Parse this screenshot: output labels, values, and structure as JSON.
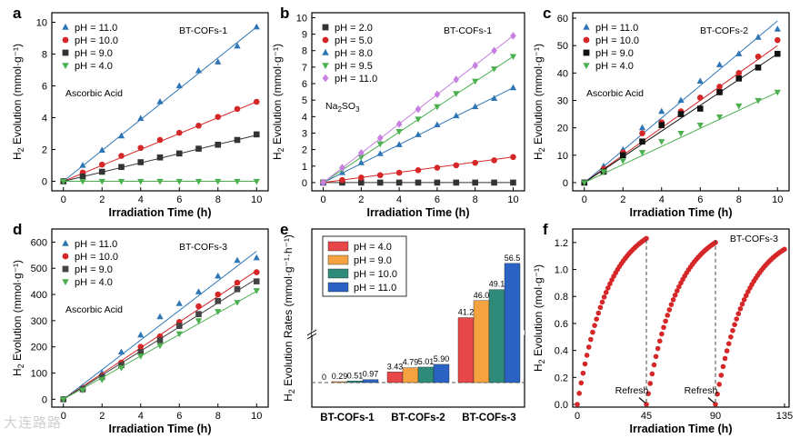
{
  "watermark": "大连路路",
  "chart_data": [
    {
      "id": "a",
      "panel_label": "a",
      "type": "scatter",
      "sample": "BT-COFs-1",
      "note": "Ascorbic Acid",
      "xlabel": "Irradiation Time (h)",
      "ylabel": "H2 Evolution (mmol·g⁻¹)",
      "xlim": [
        -0.6,
        10.6
      ],
      "ylim": [
        -0.6,
        10.6
      ],
      "xticks": [
        0,
        2,
        4,
        6,
        8,
        10
      ],
      "yticks": [
        0,
        2,
        4,
        6,
        8,
        10
      ],
      "legend": "top-left",
      "series": [
        {
          "name": "pH = 11.0",
          "color": "#2e75b6",
          "marker": "triangle-up",
          "x": [
            0,
            1,
            2,
            3,
            4,
            5,
            6,
            7,
            8,
            9,
            10
          ],
          "y": [
            0,
            1.0,
            1.95,
            2.85,
            3.95,
            5.0,
            6.0,
            6.95,
            7.5,
            8.5,
            9.7
          ],
          "fit": [
            0,
            0.97
          ]
        },
        {
          "name": "pH = 10.0",
          "color": "#d62728",
          "marker": "circle",
          "x": [
            0,
            1,
            2,
            3,
            4,
            5,
            6,
            7,
            8,
            9,
            10
          ],
          "y": [
            0,
            0.55,
            1.05,
            1.6,
            2.1,
            2.6,
            3.05,
            3.5,
            4.05,
            4.55,
            5.0
          ],
          "fit": [
            0,
            0.5
          ]
        },
        {
          "name": "pH = 9.0",
          "color": "#333333",
          "marker": "square",
          "x": [
            0,
            1,
            2,
            3,
            4,
            5,
            6,
            7,
            8,
            9,
            10
          ],
          "y": [
            0,
            0.3,
            0.6,
            0.9,
            1.2,
            1.5,
            1.75,
            2.05,
            2.3,
            2.6,
            2.95
          ],
          "fit": [
            0,
            0.29
          ]
        },
        {
          "name": "pH = 4.0",
          "color": "#4caf50",
          "marker": "triangle-down",
          "x": [
            0,
            1,
            2,
            3,
            4,
            5,
            6,
            7,
            8,
            9,
            10
          ],
          "y": [
            0,
            0,
            0,
            0,
            0,
            0,
            0,
            0,
            0,
            0,
            0
          ],
          "fit": [
            0,
            0
          ]
        }
      ]
    },
    {
      "id": "b",
      "panel_label": "b",
      "type": "scatter",
      "sample": "BT-COFs-1",
      "note": "Na2SO3",
      "xlabel": "Irradiation Time (h)",
      "ylabel": "H2 Evolution (mmol·g⁻¹)",
      "xlim": [
        -0.6,
        10.6
      ],
      "ylim": [
        -0.5,
        10.3
      ],
      "xticks": [
        0,
        2,
        4,
        6,
        8,
        10
      ],
      "yticks": [
        0,
        1,
        2,
        3,
        4,
        5,
        6,
        7,
        8,
        9,
        10
      ],
      "legend": "top-left",
      "series": [
        {
          "name": "pH = 2.0",
          "color": "#333333",
          "marker": "square",
          "x": [
            0,
            1,
            2,
            3,
            4,
            5,
            6,
            7,
            8,
            9,
            10
          ],
          "y": [
            0,
            0,
            0,
            0,
            0,
            0,
            0,
            0,
            0,
            0,
            0
          ],
          "fit": [
            0,
            0
          ]
        },
        {
          "name": "pH = 5.0",
          "color": "#d62728",
          "marker": "circle",
          "x": [
            0,
            1,
            2,
            3,
            4,
            5,
            6,
            7,
            8,
            9,
            10
          ],
          "y": [
            0,
            0.15,
            0.3,
            0.45,
            0.6,
            0.75,
            0.9,
            1.05,
            1.2,
            1.35,
            1.55
          ],
          "fit": [
            0,
            0.155
          ]
        },
        {
          "name": "pH = 8.0",
          "color": "#2e75b6",
          "marker": "triangle-up",
          "x": [
            0,
            1,
            2,
            3,
            4,
            5,
            6,
            7,
            8,
            9,
            10
          ],
          "y": [
            0,
            0.6,
            1.2,
            1.75,
            2.3,
            2.9,
            3.5,
            4.05,
            4.6,
            5.1,
            5.75
          ],
          "fit": [
            0,
            0.575
          ]
        },
        {
          "name": "pH = 9.5",
          "color": "#4caf50",
          "marker": "triangle-down",
          "x": [
            0,
            1,
            2,
            3,
            4,
            5,
            6,
            7,
            8,
            9,
            10
          ],
          "y": [
            0,
            0.8,
            1.55,
            2.35,
            3.1,
            3.85,
            4.6,
            5.4,
            6.15,
            6.9,
            7.65
          ],
          "fit": [
            0,
            0.765
          ]
        },
        {
          "name": "pH = 11.0",
          "color": "#c77fe0",
          "marker": "diamond",
          "x": [
            0,
            1,
            2,
            3,
            4,
            5,
            6,
            7,
            8,
            9,
            10
          ],
          "y": [
            0,
            0.9,
            1.8,
            2.7,
            3.55,
            4.45,
            5.35,
            6.25,
            7.1,
            8.0,
            8.9
          ],
          "fit": [
            0,
            0.89
          ]
        }
      ]
    },
    {
      "id": "c",
      "panel_label": "c",
      "type": "scatter",
      "sample": "BT-COFs-2",
      "note": "Ascorbic Acid",
      "xlabel": "Irradiation Time (h)",
      "ylabel": "H2 Evolution (mmol·g⁻¹)",
      "xlim": [
        -0.6,
        10.6
      ],
      "ylim": [
        -3,
        62
      ],
      "xticks": [
        0,
        2,
        4,
        6,
        8,
        10
      ],
      "yticks": [
        0,
        10,
        20,
        30,
        40,
        50,
        60
      ],
      "legend": "top-left",
      "series": [
        {
          "name": "pH = 11.0",
          "color": "#2e75b6",
          "marker": "triangle-up",
          "x": [
            0,
            1,
            2,
            3,
            4,
            5,
            6,
            7,
            8,
            9,
            10
          ],
          "y": [
            0,
            6,
            12,
            20,
            26,
            30,
            37,
            43,
            47,
            53,
            56
          ],
          "fit": [
            0,
            5.9
          ]
        },
        {
          "name": "pH = 10.0",
          "color": "#d62728",
          "marker": "circle",
          "x": [
            0,
            1,
            2,
            3,
            4,
            5,
            6,
            7,
            8,
            9,
            10
          ],
          "y": [
            0,
            5,
            11,
            18,
            22,
            26,
            31,
            35,
            40,
            46,
            52
          ],
          "fit": [
            0,
            5.0
          ]
        },
        {
          "name": "pH = 9.0",
          "color": "#111111",
          "marker": "square",
          "x": [
            0,
            1,
            2,
            3,
            4,
            5,
            6,
            7,
            8,
            9,
            10
          ],
          "y": [
            0,
            4,
            10,
            15,
            21,
            25,
            27,
            33,
            38,
            42,
            47
          ],
          "fit": [
            0,
            4.7
          ]
        },
        {
          "name": "pH = 4.0",
          "color": "#4caf50",
          "marker": "triangle-down",
          "x": [
            0,
            1,
            2,
            3,
            4,
            5,
            6,
            7,
            8,
            9,
            10
          ],
          "y": [
            0,
            4,
            8,
            11,
            15,
            18,
            21,
            24,
            28,
            30,
            33
          ],
          "fit": [
            0,
            3.3
          ]
        }
      ]
    },
    {
      "id": "d",
      "panel_label": "d",
      "type": "scatter",
      "sample": "BT-COFs-3",
      "note": "Ascorbic Acid",
      "xlabel": "Irradiation Time (h)",
      "ylabel": "H2 Evolution (mmol·g⁻¹)",
      "xlim": [
        -0.6,
        10.6
      ],
      "ylim": [
        -30,
        650
      ],
      "xticks": [
        0,
        2,
        4,
        6,
        8,
        10
      ],
      "yticks": [
        0,
        100,
        200,
        300,
        400,
        500,
        600
      ],
      "legend": "top-left",
      "series": [
        {
          "name": "pH = 11.0",
          "color": "#2e75b6",
          "marker": "triangle-up",
          "x": [
            0,
            1,
            2,
            3,
            4,
            5,
            6,
            7,
            8,
            9,
            10
          ],
          "y": [
            0,
            45,
            100,
            180,
            245,
            315,
            365,
            410,
            470,
            530,
            540
          ],
          "fit": [
            0,
            56.5
          ]
        },
        {
          "name": "pH = 10.0",
          "color": "#d62728",
          "marker": "circle",
          "x": [
            0,
            1,
            2,
            3,
            4,
            5,
            6,
            7,
            8,
            9,
            10
          ],
          "y": [
            0,
            40,
            90,
            140,
            200,
            240,
            295,
            355,
            400,
            445,
            485
          ],
          "fit": [
            0,
            49.1
          ]
        },
        {
          "name": "pH = 9.0",
          "color": "#444444",
          "marker": "square",
          "x": [
            0,
            1,
            2,
            3,
            4,
            5,
            6,
            7,
            8,
            9,
            10
          ],
          "y": [
            0,
            38,
            85,
            130,
            180,
            225,
            280,
            325,
            375,
            420,
            450
          ],
          "fit": [
            0,
            46.0
          ]
        },
        {
          "name": "pH = 4.0",
          "color": "#4caf50",
          "marker": "triangle-down",
          "x": [
            0,
            1,
            2,
            3,
            4,
            5,
            6,
            7,
            8,
            9,
            10
          ],
          "y": [
            0,
            35,
            75,
            120,
            165,
            205,
            250,
            300,
            335,
            370,
            415
          ],
          "fit": [
            0,
            41.2
          ]
        }
      ]
    },
    {
      "id": "e",
      "panel_label": "e",
      "type": "bar",
      "ylabel": "H2 Evolution Rates (mmol·g⁻¹·h⁻¹)",
      "categories": [
        "BT-COFs-1",
        "BT-COFs-2",
        "BT-COFs-3"
      ],
      "axis_break": true,
      "legend": "top-left",
      "series": [
        {
          "name": "pH = 4.0",
          "color": "#e8474a",
          "values": [
            0,
            3.43,
            41.2
          ],
          "labels": [
            "0",
            "3.43",
            "41.2"
          ]
        },
        {
          "name": "pH = 9.0",
          "color": "#f5a341",
          "values": [
            0.29,
            4.79,
            46.0
          ],
          "labels": [
            "0.29",
            "4.79",
            "46.0"
          ]
        },
        {
          "name": "pH = 10.0",
          "color": "#2e8b7a",
          "values": [
            0.51,
            5.01,
            49.1
          ],
          "labels": [
            "0.51",
            "5.01",
            "49.1"
          ]
        },
        {
          "name": "pH = 11.0",
          "color": "#2a63c4",
          "values": [
            0.97,
            5.9,
            56.5
          ],
          "labels": [
            "0.97",
            "5.90",
            "56.5"
          ]
        }
      ]
    },
    {
      "id": "f",
      "panel_label": "f",
      "type": "scatter",
      "sample": "BT-COFs-3",
      "xlabel": "Irradiation Time (h)",
      "ylabel": "H2 Evolution (mol·g⁻¹)",
      "xlim": [
        -3,
        138
      ],
      "ylim": [
        -0.02,
        1.3
      ],
      "xticks": [
        0,
        45,
        90,
        135
      ],
      "yticks": [
        0.0,
        0.2,
        0.4,
        0.6,
        0.8,
        1.0,
        1.2
      ],
      "annotations": [
        {
          "text": "Refresh",
          "x": 45
        },
        {
          "text": "Refresh",
          "x": 90
        }
      ],
      "cycles": [
        {
          "start": 0,
          "end": 45,
          "final": 1.23
        },
        {
          "start": 45,
          "end": 90,
          "final": 1.2
        },
        {
          "start": 90,
          "end": 135,
          "final": 1.15
        }
      ],
      "marker_color": "#d62728"
    }
  ]
}
